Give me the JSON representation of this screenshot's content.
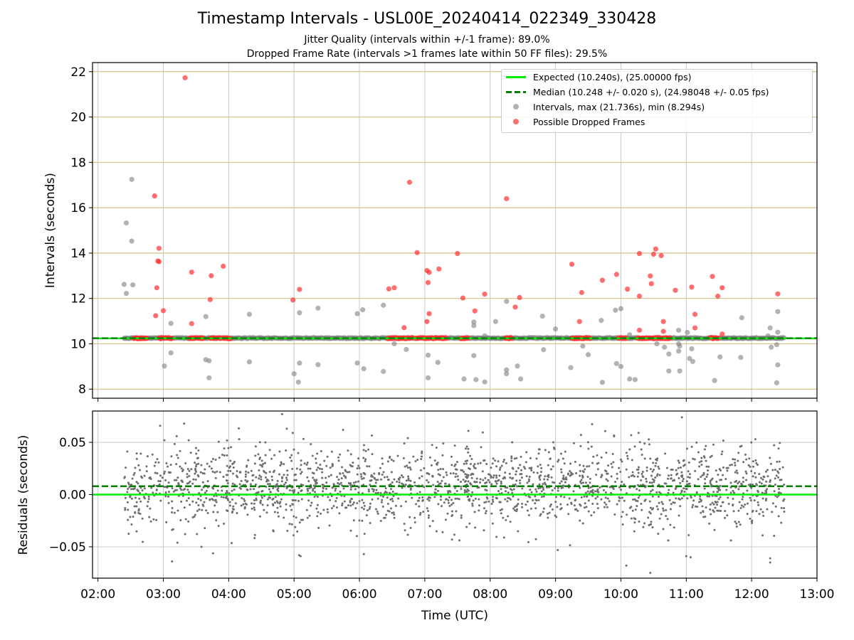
{
  "figure": {
    "title": "Timestamp Intervals - USL00E_20240414_022349_330428",
    "subtitle_1": "Jitter Quality (intervals within +/-1 frame): 89.0%",
    "subtitle_2": "Dropped Frame Rate (intervals >1 frames late within 50 FF files): 29.5%"
  },
  "colors": {
    "expected": "#00ee00",
    "median": "#007f00",
    "intervals": "#808080",
    "dropped": "#ff3030",
    "residuals": "#6e6e6e",
    "grid_top": "#d8c28a",
    "grid": "#c8c8c8"
  },
  "chart_data": [
    {
      "id": "intervals",
      "type": "scatter",
      "ylabel": "Intervals (seconds)",
      "xlabel": "",
      "xlim": [
        "01:55",
        "13:00"
      ],
      "ylim": [
        7.6,
        22.4
      ],
      "yticks": [
        8,
        10,
        12,
        14,
        16,
        18,
        20,
        22
      ],
      "grid": true,
      "legend_position": "top-right",
      "series": [
        {
          "name": "Expected (10.240s), (25.00000 fps)",
          "kind": "hline",
          "y": 10.24
        },
        {
          "name": "Median (10.248 +/- 0.020 s), (24.98048 +/- 0.05 fps)",
          "kind": "hline-dashed",
          "y": 10.248
        },
        {
          "name": "Intervals, max (21.736s), min (8.294s)",
          "kind": "points",
          "band": {
            "x_start": "02:24",
            "x_end": "12:30",
            "y": 10.25
          },
          "points": [
            [
              "02:24",
              12.62
            ],
            [
              "02:26",
              15.33
            ],
            [
              "02:26",
              12.22
            ],
            [
              "02:31",
              17.25
            ],
            [
              "02:31",
              14.53
            ],
            [
              "02:32",
              12.6
            ],
            [
              "03:01",
              9.02
            ],
            [
              "03:07",
              10.9
            ],
            [
              "03:07",
              9.6
            ],
            [
              "03:39",
              11.2
            ],
            [
              "03:39",
              9.3
            ],
            [
              "03:42",
              9.25
            ],
            [
              "03:42",
              8.5
            ],
            [
              "04:19",
              11.3
            ],
            [
              "04:19",
              9.2
            ],
            [
              "05:00",
              8.68
            ],
            [
              "05:05",
              11.37
            ],
            [
              "05:05",
              9.15
            ],
            [
              "05:04",
              8.31
            ],
            [
              "05:22",
              11.57
            ],
            [
              "05:22",
              9.08
            ],
            [
              "05:58",
              11.33
            ],
            [
              "05:58",
              9.15
            ],
            [
              "06:03",
              11.5
            ],
            [
              "06:04",
              8.9
            ],
            [
              "06:22",
              11.7
            ],
            [
              "06:22",
              8.78
            ],
            [
              "06:32",
              10.0
            ],
            [
              "06:43",
              9.75
            ],
            [
              "07:03",
              9.5
            ],
            [
              "07:03",
              8.5
            ],
            [
              "07:12",
              9.18
            ],
            [
              "07:36",
              8.45
            ],
            [
              "07:45",
              10.96
            ],
            [
              "07:45",
              10.8
            ],
            [
              "07:45",
              9.48
            ],
            [
              "07:47",
              8.42
            ],
            [
              "07:55",
              10.35
            ],
            [
              "07:55",
              8.32
            ],
            [
              "08:05",
              10.98
            ],
            [
              "08:15",
              11.87
            ],
            [
              "08:15",
              8.85
            ],
            [
              "08:15",
              8.68
            ],
            [
              "08:25",
              9.02
            ],
            [
              "08:28",
              8.45
            ],
            [
              "08:48",
              11.22
            ],
            [
              "08:49",
              9.74
            ],
            [
              "09:00",
              10.65
            ],
            [
              "09:14",
              8.95
            ],
            [
              "09:25",
              9.9
            ],
            [
              "09:30",
              9.52
            ],
            [
              "09:42",
              11.03
            ],
            [
              "09:43",
              8.3
            ],
            [
              "09:55",
              11.48
            ],
            [
              "10:00",
              11.55
            ],
            [
              "10:00",
              9.0
            ],
            [
              "09:56",
              9.13
            ],
            [
              "10:08",
              10.4
            ],
            [
              "10:08",
              8.45
            ],
            [
              "10:13",
              8.42
            ],
            [
              "10:33",
              10.0
            ],
            [
              "10:40",
              9.85
            ],
            [
              "10:44",
              9.55
            ],
            [
              "10:44",
              8.8
            ],
            [
              "10:53",
              10.6
            ],
            [
              "10:53",
              10.0
            ],
            [
              "10:54",
              9.9
            ],
            [
              "10:53",
              9.68
            ],
            [
              "10:54",
              8.8
            ],
            [
              "11:01",
              10.5
            ],
            [
              "11:03",
              9.35
            ],
            [
              "11:05",
              9.78
            ],
            [
              "11:06",
              9.22
            ],
            [
              "11:26",
              8.38
            ],
            [
              "11:31",
              9.42
            ],
            [
              "11:51",
              11.15
            ],
            [
              "11:50",
              9.4
            ],
            [
              "12:15",
              10.35
            ],
            [
              "12:17",
              10.7
            ],
            [
              "12:18",
              9.85
            ],
            [
              "12:24",
              11.42
            ],
            [
              "12:24",
              10.51
            ],
            [
              "12:23",
              9.96
            ],
            [
              "12:24",
              9.07
            ],
            [
              "12:23",
              8.28
            ]
          ]
        },
        {
          "name": "Possible Dropped Frames",
          "kind": "points",
          "clusters": [
            [
              "02:33",
              "02:45"
            ],
            [
              "02:56",
              "03:08"
            ],
            [
              "03:24",
              "03:37"
            ],
            [
              "03:43",
              "03:53"
            ],
            [
              "03:55",
              "04:02"
            ],
            [
              "06:26",
              "06:49"
            ],
            [
              "06:52",
              "07:20"
            ],
            [
              "07:33",
              "07:40"
            ],
            [
              "08:14",
              "08:20"
            ],
            [
              "09:15",
              "09:32"
            ],
            [
              "09:58",
              "10:05"
            ],
            [
              "10:15",
              "10:45"
            ],
            [
              "11:22",
              "11:30"
            ]
          ],
          "cluster_y": 10.25,
          "points": [
            [
              "03:20",
              21.73
            ],
            [
              "02:52",
              16.52
            ],
            [
              "02:56",
              14.21
            ],
            [
              "02:55",
              13.65
            ],
            [
              "02:56",
              13.62
            ],
            [
              "02:54",
              12.47
            ],
            [
              "03:00",
              11.46
            ],
            [
              "02:53",
              11.24
            ],
            [
              "03:26",
              13.16
            ],
            [
              "03:26",
              10.89
            ],
            [
              "03:44",
              13.0
            ],
            [
              "03:43",
              11.95
            ],
            [
              "03:55",
              13.42
            ],
            [
              "04:59",
              11.93
            ],
            [
              "05:05",
              12.4
            ],
            [
              "06:27",
              12.42
            ],
            [
              "06:32",
              12.47
            ],
            [
              "06:41",
              10.71
            ],
            [
              "06:46",
              17.12
            ],
            [
              "06:53",
              14.02
            ],
            [
              "07:02",
              13.23
            ],
            [
              "07:04",
              13.15
            ],
            [
              "07:03",
              12.7
            ],
            [
              "07:04",
              11.33
            ],
            [
              "07:02",
              10.98
            ],
            [
              "07:13",
              13.3
            ],
            [
              "07:30",
              13.98
            ],
            [
              "07:35",
              12.02
            ],
            [
              "07:46",
              11.45
            ],
            [
              "07:55",
              12.19
            ],
            [
              "08:15",
              16.4
            ],
            [
              "08:23",
              11.62
            ],
            [
              "08:27",
              12.04
            ],
            [
              "09:15",
              13.51
            ],
            [
              "09:22",
              10.98
            ],
            [
              "09:24",
              12.26
            ],
            [
              "09:43",
              12.8
            ],
            [
              "09:56",
              13.06
            ],
            [
              "10:06",
              12.41
            ],
            [
              "10:17",
              13.98
            ],
            [
              "10:17",
              12.1
            ],
            [
              "10:17",
              10.6
            ],
            [
              "10:27",
              12.99
            ],
            [
              "10:28",
              12.65
            ],
            [
              "10:30",
              13.95
            ],
            [
              "10:32",
              14.18
            ],
            [
              "10:37",
              13.89
            ],
            [
              "10:39",
              10.98
            ],
            [
              "10:39",
              10.55
            ],
            [
              "10:50",
              12.36
            ],
            [
              "11:05",
              12.5
            ],
            [
              "11:08",
              11.3
            ],
            [
              "11:08",
              10.7
            ],
            [
              "11:24",
              12.97
            ],
            [
              "11:29",
              12.1
            ],
            [
              "11:33",
              12.47
            ],
            [
              "11:33",
              10.43
            ],
            [
              "12:24",
              12.2
            ]
          ]
        }
      ]
    },
    {
      "id": "residuals",
      "type": "scatter",
      "ylabel": "Residuals (seconds)",
      "xlabel": "Time (UTC)",
      "xlim": [
        "01:55",
        "13:00"
      ],
      "ylim": [
        -0.08,
        0.08
      ],
      "yticks": [
        -0.05,
        0.0,
        0.05
      ],
      "ytick_labels": [
        "−0.05",
        "0.00",
        "0.05"
      ],
      "xticks": [
        "02:00",
        "03:00",
        "04:00",
        "05:00",
        "06:00",
        "07:00",
        "08:00",
        "09:00",
        "10:00",
        "11:00",
        "12:00",
        "13:00"
      ],
      "grid": true,
      "series": [
        {
          "name": "Expected",
          "kind": "hline",
          "y": 0.0
        },
        {
          "name": "Median",
          "kind": "hline-dashed",
          "y": 0.008
        },
        {
          "name": "Residuals",
          "kind": "points",
          "distribution": {
            "x_start": "02:24",
            "x_end": "12:30",
            "count": 2100,
            "mean": 0.008,
            "sd": 0.019
          },
          "outliers": [
            [
              "04:49",
              0.077
            ],
            [
              "10:56",
              0.074
            ],
            [
              "03:08",
              -0.064
            ],
            [
              "12:17",
              -0.061
            ],
            [
              "12:17",
              -0.065
            ],
            [
              "05:06",
              -0.059
            ],
            [
              "10:27",
              -0.075
            ],
            [
              "10:05",
              -0.068
            ],
            [
              "06:04",
              -0.057
            ],
            [
              "03:35",
              -0.05
            ],
            [
              "11:00",
              -0.059
            ],
            [
              "11:04",
              -0.06
            ],
            [
              "03:01",
              0.052
            ],
            [
              "07:40",
              0.061
            ],
            [
              "05:45",
              0.062
            ]
          ]
        }
      ]
    }
  ]
}
